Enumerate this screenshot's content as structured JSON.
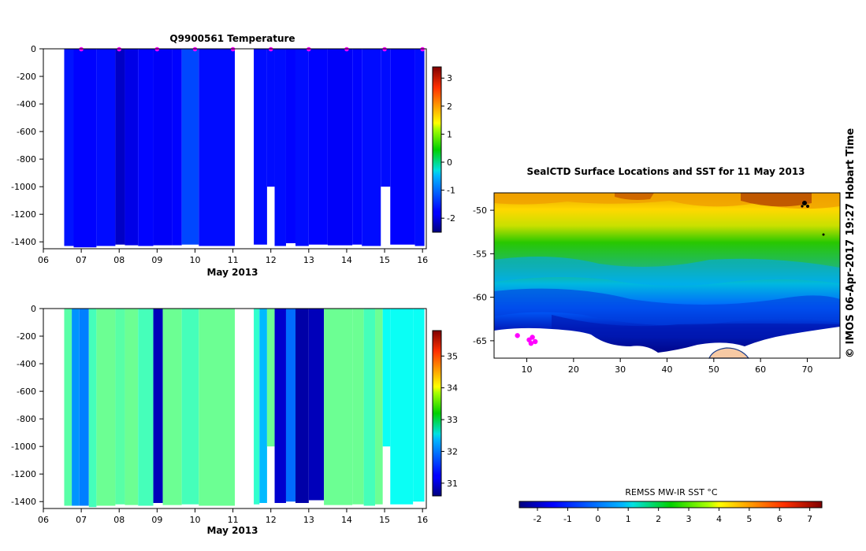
{
  "chart_data": [
    {
      "type": "heatmap",
      "title": "Q9900561  Temperature",
      "xlabel": "May 2013",
      "ylabel": "",
      "x_ticks": [
        "06",
        "07",
        "08",
        "09",
        "10",
        "11",
        "12",
        "13",
        "14",
        "15",
        "16"
      ],
      "y_ticks": [
        "0",
        "-200",
        "-400",
        "-600",
        "-800",
        "-1000",
        "-1200",
        "-1400"
      ],
      "xlim_days": [
        6,
        16.1
      ],
      "ylim": [
        -1450,
        0
      ],
      "colorbar_ticks": [
        "-2",
        "-1",
        "0",
        "1",
        "2",
        "3"
      ],
      "colorbar_range": [
        -2.5,
        3.4
      ],
      "profiles": [
        {
          "start": 6.55,
          "end": 6.8,
          "value": -1.65,
          "bottom": -1430
        },
        {
          "start": 6.8,
          "end": 7.4,
          "value": -1.75,
          "bottom": -1440
        },
        {
          "start": 7.4,
          "end": 7.9,
          "value": -1.7,
          "bottom": -1430
        },
        {
          "start": 7.9,
          "end": 8.15,
          "value": -2.1,
          "bottom": -1420
        },
        {
          "start": 8.15,
          "end": 8.5,
          "value": -1.9,
          "bottom": -1425
        },
        {
          "start": 8.5,
          "end": 8.9,
          "value": -1.75,
          "bottom": -1430
        },
        {
          "start": 8.9,
          "end": 9.4,
          "value": -1.8,
          "bottom": -1425
        },
        {
          "start": 9.4,
          "end": 9.65,
          "value": -1.75,
          "bottom": -1425
        },
        {
          "start": 9.65,
          "end": 10.1,
          "value": -1.35,
          "bottom": -1420
        },
        {
          "start": 10.1,
          "end": 11.05,
          "value": -1.7,
          "bottom": -1430
        },
        {
          "start": 11.55,
          "end": 11.9,
          "value": -1.7,
          "bottom": -1420
        },
        {
          "start": 11.9,
          "end": 12.1,
          "value": -1.7,
          "bottom": -1000
        },
        {
          "start": 12.1,
          "end": 12.4,
          "value": -1.7,
          "bottom": -1430
        },
        {
          "start": 12.4,
          "end": 12.65,
          "value": -1.75,
          "bottom": -1410
        },
        {
          "start": 12.65,
          "end": 13.0,
          "value": -1.7,
          "bottom": -1430
        },
        {
          "start": 13.0,
          "end": 13.5,
          "value": -1.75,
          "bottom": -1420
        },
        {
          "start": 13.5,
          "end": 14.15,
          "value": -1.8,
          "bottom": -1425
        },
        {
          "start": 14.15,
          "end": 14.4,
          "value": -1.75,
          "bottom": -1420
        },
        {
          "start": 14.4,
          "end": 14.9,
          "value": -1.7,
          "bottom": -1430
        },
        {
          "start": 14.9,
          "end": 15.15,
          "value": -1.7,
          "bottom": -1000
        },
        {
          "start": 15.15,
          "end": 15.8,
          "value": -1.75,
          "bottom": -1420
        },
        {
          "start": 15.8,
          "end": 16.05,
          "value": -1.7,
          "bottom": -1430
        }
      ],
      "surface_markers": [
        7.0,
        8.0,
        9.0,
        10.0,
        11.0,
        12.0,
        13.0,
        14.0,
        15.0,
        16.0
      ]
    },
    {
      "type": "heatmap",
      "title": "",
      "xlabel": "May 2013",
      "ylabel": "",
      "x_ticks": [
        "06",
        "07",
        "08",
        "09",
        "10",
        "11",
        "12",
        "13",
        "14",
        "15",
        "16"
      ],
      "y_ticks": [
        "0",
        "-200",
        "-400",
        "-600",
        "-800",
        "-1000",
        "-1200",
        "-1400"
      ],
      "xlim_days": [
        6,
        16.1
      ],
      "ylim": [
        -1450,
        0
      ],
      "colorbar_ticks": [
        "31",
        "32",
        "33",
        "34",
        "35"
      ],
      "colorbar_range": [
        30.6,
        35.8
      ],
      "profiles": [
        {
          "start": 6.55,
          "end": 6.75,
          "value": 33.0,
          "bottom": -1430
        },
        {
          "start": 6.75,
          "end": 6.95,
          "value": 32.0,
          "bottom": -1430
        },
        {
          "start": 6.95,
          "end": 7.2,
          "value": 31.9,
          "bottom": -1430
        },
        {
          "start": 7.2,
          "end": 7.4,
          "value": 32.9,
          "bottom": -1440
        },
        {
          "start": 7.4,
          "end": 7.9,
          "value": 33.1,
          "bottom": -1430
        },
        {
          "start": 7.9,
          "end": 8.15,
          "value": 33.0,
          "bottom": -1420
        },
        {
          "start": 8.15,
          "end": 8.5,
          "value": 33.1,
          "bottom": -1425
        },
        {
          "start": 8.5,
          "end": 8.9,
          "value": 32.9,
          "bottom": -1430
        },
        {
          "start": 8.9,
          "end": 9.15,
          "value": 30.9,
          "bottom": -1410
        },
        {
          "start": 9.15,
          "end": 9.65,
          "value": 33.1,
          "bottom": -1425
        },
        {
          "start": 9.65,
          "end": 10.1,
          "value": 32.9,
          "bottom": -1420
        },
        {
          "start": 10.1,
          "end": 11.05,
          "value": 33.1,
          "bottom": -1430
        },
        {
          "start": 11.55,
          "end": 11.7,
          "value": 32.8,
          "bottom": -1420
        },
        {
          "start": 11.7,
          "end": 11.9,
          "value": 32.2,
          "bottom": -1410
        },
        {
          "start": 11.9,
          "end": 12.1,
          "value": 33.1,
          "bottom": -1000
        },
        {
          "start": 12.1,
          "end": 12.4,
          "value": 31.0,
          "bottom": -1410
        },
        {
          "start": 12.4,
          "end": 12.65,
          "value": 31.8,
          "bottom": -1400
        },
        {
          "start": 12.65,
          "end": 13.0,
          "value": 30.8,
          "bottom": -1410
        },
        {
          "start": 13.0,
          "end": 13.4,
          "value": 30.9,
          "bottom": -1390
        },
        {
          "start": 13.4,
          "end": 14.15,
          "value": 33.1,
          "bottom": -1425
        },
        {
          "start": 14.15,
          "end": 14.45,
          "value": 33.1,
          "bottom": -1420
        },
        {
          "start": 14.45,
          "end": 14.75,
          "value": 32.9,
          "bottom": -1430
        },
        {
          "start": 14.75,
          "end": 14.95,
          "value": 33.1,
          "bottom": -1420
        },
        {
          "start": 14.95,
          "end": 15.15,
          "value": 32.6,
          "bottom": -1000
        },
        {
          "start": 15.15,
          "end": 15.75,
          "value": 32.6,
          "bottom": -1420
        },
        {
          "start": 15.75,
          "end": 16.05,
          "value": 32.6,
          "bottom": -1400
        }
      ]
    },
    {
      "type": "heatmap",
      "title": "SealCTD Surface Locations and SST for 11 May 2013",
      "xlabel": "",
      "ylabel": "",
      "x_ticks": [
        "10",
        "20",
        "30",
        "40",
        "50",
        "60",
        "70"
      ],
      "y_ticks": [
        "-50",
        "-55",
        "-60",
        "-65"
      ],
      "xlim": [
        3,
        77
      ],
      "ylim": [
        -67,
        -48
      ],
      "colorbar_label": "REMSS MW-IR SST °C",
      "colorbar_ticks": [
        "-2",
        "-1",
        "0",
        "1",
        "2",
        "3",
        "4",
        "5",
        "6",
        "7"
      ],
      "colorbar_range": [
        -2.6,
        7.4
      ],
      "credit": "© IMOS 06-Apr-2017 19:27 Hobart Time",
      "seal_positions": [
        {
          "lon": 8.0,
          "lat": -64.4
        },
        {
          "lon": 10.5,
          "lat": -64.9
        },
        {
          "lon": 11.2,
          "lat": -64.6
        },
        {
          "lon": 11.8,
          "lat": -65.1
        },
        {
          "lon": 10.9,
          "lat": -65.3
        }
      ]
    }
  ]
}
